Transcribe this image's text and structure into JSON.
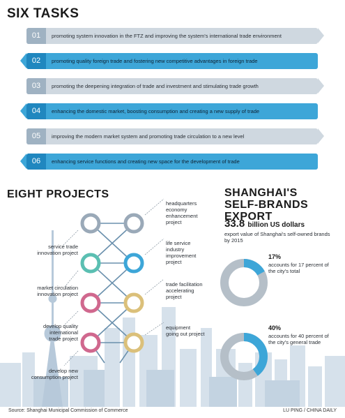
{
  "six_tasks": {
    "title": "SIX TASKS",
    "items": [
      {
        "num": "01",
        "text": "promoting system innovation in the FTZ and improving the system's international trade environment",
        "style": "gray",
        "tip": "right"
      },
      {
        "num": "02",
        "text": "promoting quality foreign trade and fostering new competitive advantages in foreign trade",
        "style": "blue",
        "tip": "left"
      },
      {
        "num": "03",
        "text": "promoting the deepening integration of trade and investment and stimulating trade growth",
        "style": "gray",
        "tip": "right"
      },
      {
        "num": "04",
        "text": "enhancing the domestic market, boosting consumption and creating a new supply of trade",
        "style": "blue",
        "tip": "left"
      },
      {
        "num": "05",
        "text": "improving the modern market system and promoting trade circulation to a new level",
        "style": "gray",
        "tip": "right"
      },
      {
        "num": "06",
        "text": "enhancing service functions and creating new space for the development of trade",
        "style": "blue",
        "tip": "left"
      }
    ]
  },
  "eight_projects": {
    "title": "EIGHT PROJECTS",
    "left": [
      "service trade\ninnovation project",
      "market circulation\ninnovation project",
      "develop quality\ninternational\ntrade project",
      "develop new\nconsumption project"
    ],
    "right": [
      "headquarters\neconomy\nenhancement\nproject",
      "life service\nindustry\nimprovement\nproject",
      "trade facilitation\naccelerating\nproject",
      "equipment\ngoing out project"
    ]
  },
  "shanghai": {
    "title_line1": "SHANGHAI'S",
    "title_line2": "SELF-BRANDS EXPORT",
    "big_value": "33.8",
    "big_unit": "billion US dollars",
    "subtitle": "export value of Shanghai's self-owned brands by 2015",
    "donuts": [
      {
        "percent": "17%",
        "value": 17,
        "desc": "accounts for 17 percent of the city's total"
      },
      {
        "percent": "40%",
        "value": 40,
        "desc": "accounts for 40 percent of the city's general trade"
      }
    ]
  },
  "colors": {
    "accent": "#3da6d8",
    "accent_dark": "#2087bf",
    "gray_band": "#cfd8e0",
    "donut_gray": "#b5bfc8",
    "skyline": "#cfdbe6"
  },
  "footer": {
    "source": "Source: Shanghai Municipal Commission of Commerce",
    "credit": "LU PING / CHINA DAILY"
  }
}
